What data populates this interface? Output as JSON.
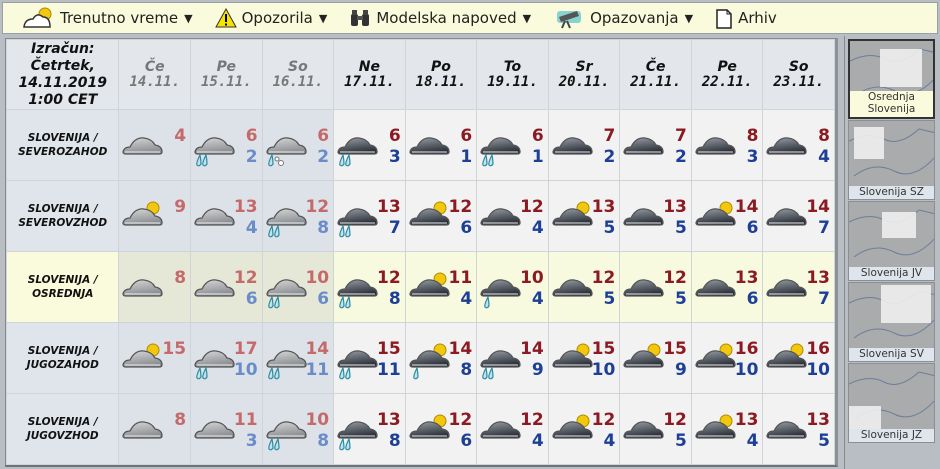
{
  "toolbar": {
    "items": [
      {
        "label": "Trenutno vreme",
        "icon": "sun-cloud-icon",
        "dropdown": true
      },
      {
        "label": "Opozorila",
        "icon": "warning-icon",
        "dropdown": true
      },
      {
        "label": "Modelska napoved",
        "icon": "binoculars-icon",
        "dropdown": true
      },
      {
        "label": "Opazovanja",
        "icon": "telescope-icon",
        "dropdown": true
      },
      {
        "label": "Arhiv",
        "icon": "document-icon",
        "dropdown": false
      }
    ]
  },
  "header": {
    "calc_line1": "Izračun:",
    "calc_line2": "Četrtek,",
    "calc_line3": "14.11.2019",
    "calc_line4": "1:00 CET",
    "days": [
      {
        "name": "Če",
        "date": "14.11.",
        "past": true
      },
      {
        "name": "Pe",
        "date": "15.11.",
        "past": true
      },
      {
        "name": "So",
        "date": "16.11.",
        "past": true
      },
      {
        "name": "Ne",
        "date": "17.11.",
        "past": false
      },
      {
        "name": "Po",
        "date": "18.11.",
        "past": false
      },
      {
        "name": "To",
        "date": "19.11.",
        "past": false
      },
      {
        "name": "Sr",
        "date": "20.11.",
        "past": false
      },
      {
        "name": "Če",
        "date": "21.11.",
        "past": false
      },
      {
        "name": "Pe",
        "date": "22.11.",
        "past": false
      },
      {
        "name": "So",
        "date": "23.11.",
        "past": false
      }
    ]
  },
  "colors": {
    "tmax": "#8b1a22",
    "tmin": "#1d3f96",
    "highlight": "#fafadc"
  },
  "rows": [
    {
      "line1": "SLOVENIJA /",
      "line2": "SEVEROZAHOD",
      "highlighted": false,
      "cells": [
        {
          "icon": "cloud",
          "max": "4",
          "min": ""
        },
        {
          "icon": "cloud-rain",
          "max": "6",
          "min": "2"
        },
        {
          "icon": "cloud-sleet",
          "max": "6",
          "min": "2"
        },
        {
          "icon": "cloud-rain",
          "max": "6",
          "min": "3"
        },
        {
          "icon": "cloud",
          "max": "6",
          "min": "1"
        },
        {
          "icon": "cloud-rain",
          "max": "6",
          "min": "1"
        },
        {
          "icon": "cloud",
          "max": "7",
          "min": "2"
        },
        {
          "icon": "cloud",
          "max": "7",
          "min": "2"
        },
        {
          "icon": "cloud",
          "max": "8",
          "min": "3"
        },
        {
          "icon": "cloud",
          "max": "8",
          "min": "4"
        }
      ]
    },
    {
      "line1": "SLOVENIJA /",
      "line2": "SEVEROVZHOD",
      "highlighted": false,
      "cells": [
        {
          "icon": "sun-cloud",
          "max": "9",
          "min": ""
        },
        {
          "icon": "cloud",
          "max": "13",
          "min": "4"
        },
        {
          "icon": "cloud-rain",
          "max": "12",
          "min": "8"
        },
        {
          "icon": "cloud-rain",
          "max": "13",
          "min": "7"
        },
        {
          "icon": "sun-cloud",
          "max": "12",
          "min": "6"
        },
        {
          "icon": "cloud",
          "max": "12",
          "min": "4"
        },
        {
          "icon": "sun-cloud",
          "max": "13",
          "min": "5"
        },
        {
          "icon": "cloud",
          "max": "13",
          "min": "5"
        },
        {
          "icon": "sun-cloud",
          "max": "14",
          "min": "6"
        },
        {
          "icon": "cloud",
          "max": "14",
          "min": "7"
        }
      ]
    },
    {
      "line1": "SLOVENIJA /",
      "line2": "OSREDNJA",
      "highlighted": true,
      "cells": [
        {
          "icon": "cloud",
          "max": "8",
          "min": ""
        },
        {
          "icon": "cloud",
          "max": "12",
          "min": "6"
        },
        {
          "icon": "cloud-rain",
          "max": "10",
          "min": "6"
        },
        {
          "icon": "cloud-rain",
          "max": "12",
          "min": "8"
        },
        {
          "icon": "sun-cloud",
          "max": "11",
          "min": "4"
        },
        {
          "icon": "cloud-light-rain",
          "max": "10",
          "min": "4"
        },
        {
          "icon": "cloud",
          "max": "12",
          "min": "5"
        },
        {
          "icon": "cloud",
          "max": "12",
          "min": "5"
        },
        {
          "icon": "cloud",
          "max": "13",
          "min": "6"
        },
        {
          "icon": "cloud",
          "max": "13",
          "min": "7"
        }
      ]
    },
    {
      "line1": "SLOVENIJA /",
      "line2": "JUGOZAHOD",
      "highlighted": false,
      "cells": [
        {
          "icon": "sun-cloud",
          "max": "15",
          "min": ""
        },
        {
          "icon": "cloud-rain",
          "max": "17",
          "min": "10"
        },
        {
          "icon": "cloud-rain",
          "max": "14",
          "min": "11"
        },
        {
          "icon": "cloud-rain",
          "max": "15",
          "min": "11"
        },
        {
          "icon": "sun-cloud-light-rain",
          "max": "14",
          "min": "8"
        },
        {
          "icon": "cloud-rain",
          "max": "14",
          "min": "9"
        },
        {
          "icon": "sun-cloud",
          "max": "15",
          "min": "10"
        },
        {
          "icon": "sun-cloud",
          "max": "15",
          "min": "9"
        },
        {
          "icon": "sun-cloud",
          "max": "16",
          "min": "10"
        },
        {
          "icon": "sun-cloud",
          "max": "16",
          "min": "10"
        }
      ]
    },
    {
      "line1": "SLOVENIJA /",
      "line2": "JUGOVZHOD",
      "highlighted": false,
      "cells": [
        {
          "icon": "cloud",
          "max": "8",
          "min": ""
        },
        {
          "icon": "cloud",
          "max": "11",
          "min": "3"
        },
        {
          "icon": "cloud-rain",
          "max": "10",
          "min": "8"
        },
        {
          "icon": "cloud-rain",
          "max": "13",
          "min": "8"
        },
        {
          "icon": "sun-cloud",
          "max": "12",
          "min": "6"
        },
        {
          "icon": "cloud",
          "max": "12",
          "min": "4"
        },
        {
          "icon": "sun-cloud",
          "max": "12",
          "min": "4"
        },
        {
          "icon": "cloud",
          "max": "12",
          "min": "5"
        },
        {
          "icon": "sun-cloud",
          "max": "13",
          "min": "4"
        },
        {
          "icon": "cloud",
          "max": "13",
          "min": "5"
        }
      ]
    }
  ],
  "sidebar": {
    "maps": [
      {
        "label": "Osrednja\nSlovenija",
        "selected": true
      },
      {
        "label": "Slovenija SZ",
        "selected": false
      },
      {
        "label": "Slovenija JV",
        "selected": false
      },
      {
        "label": "Slovenija SV",
        "selected": false
      },
      {
        "label": "Slovenija JZ",
        "selected": false
      }
    ]
  }
}
